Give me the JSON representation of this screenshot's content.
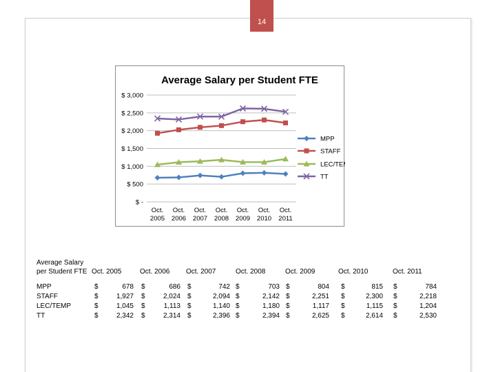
{
  "slide": {
    "page_number": "14"
  },
  "chart_data": {
    "type": "line",
    "title": "Average Salary per Student FTE",
    "categories": [
      [
        "Oct.",
        "2005"
      ],
      [
        "Oct.",
        "2006"
      ],
      [
        "Oct.",
        "2007"
      ],
      [
        "Oct.",
        "2008"
      ],
      [
        "Oct.",
        "2009"
      ],
      [
        "Oct.",
        "2010"
      ],
      [
        "Oct.",
        "2011"
      ]
    ],
    "y_ticks": [
      {
        "value": 0,
        "label": "$ -"
      },
      {
        "value": 500,
        "label": "$ 500"
      },
      {
        "value": 1000,
        "label": "$ 1,000"
      },
      {
        "value": 1500,
        "label": "$ 1,500"
      },
      {
        "value": 2000,
        "label": "$ 2,000"
      },
      {
        "value": 2500,
        "label": "$ 2,500"
      },
      {
        "value": 3000,
        "label": "$ 3,000"
      }
    ],
    "ylim": [
      0,
      3000
    ],
    "grid": "horizontal",
    "legend_position": "right",
    "series": [
      {
        "name": "MPP",
        "color": "#4f81bd",
        "marker": "diamond",
        "values": [
          678,
          686,
          742,
          703,
          804,
          815,
          784
        ]
      },
      {
        "name": "STAFF",
        "color": "#c0504d",
        "marker": "square",
        "values": [
          1927,
          2024,
          2094,
          2142,
          2251,
          2300,
          2218
        ]
      },
      {
        "name": "LEC/TEMP",
        "color": "#9bbb59",
        "marker": "triangle",
        "values": [
          1045,
          1113,
          1140,
          1180,
          1117,
          1115,
          1204
        ]
      },
      {
        "name": "TT",
        "color": "#8064a2",
        "marker": "x",
        "values": [
          2342,
          2314,
          2396,
          2394,
          2625,
          2614,
          2530
        ]
      }
    ]
  },
  "table": {
    "header_line1": "Average Salary",
    "header_line2": "per Student FTE",
    "columns": [
      "Oct. 2005",
      "Oct. 2006",
      "Oct. 2007",
      "Oct. 2008",
      "Oct. 2009",
      "Oct. 2010",
      "Oct. 2011"
    ],
    "currency_symbol": "$",
    "rows": [
      {
        "label": "MPP",
        "values": [
          "678",
          "686",
          "742",
          "703",
          "804",
          "815",
          "784"
        ]
      },
      {
        "label": "STAFF",
        "values": [
          "1,927",
          "2,024",
          "2,094",
          "2,142",
          "2,251",
          "2,300",
          "2,218"
        ]
      },
      {
        "label": "LEC/TEMP",
        "values": [
          "1,045",
          "1,113",
          "1,140",
          "1,180",
          "1,117",
          "1,115",
          "1,204"
        ]
      },
      {
        "label": "TT",
        "values": [
          "2,342",
          "2,314",
          "2,396",
          "2,394",
          "2,625",
          "2,614",
          "2,530"
        ]
      }
    ]
  }
}
